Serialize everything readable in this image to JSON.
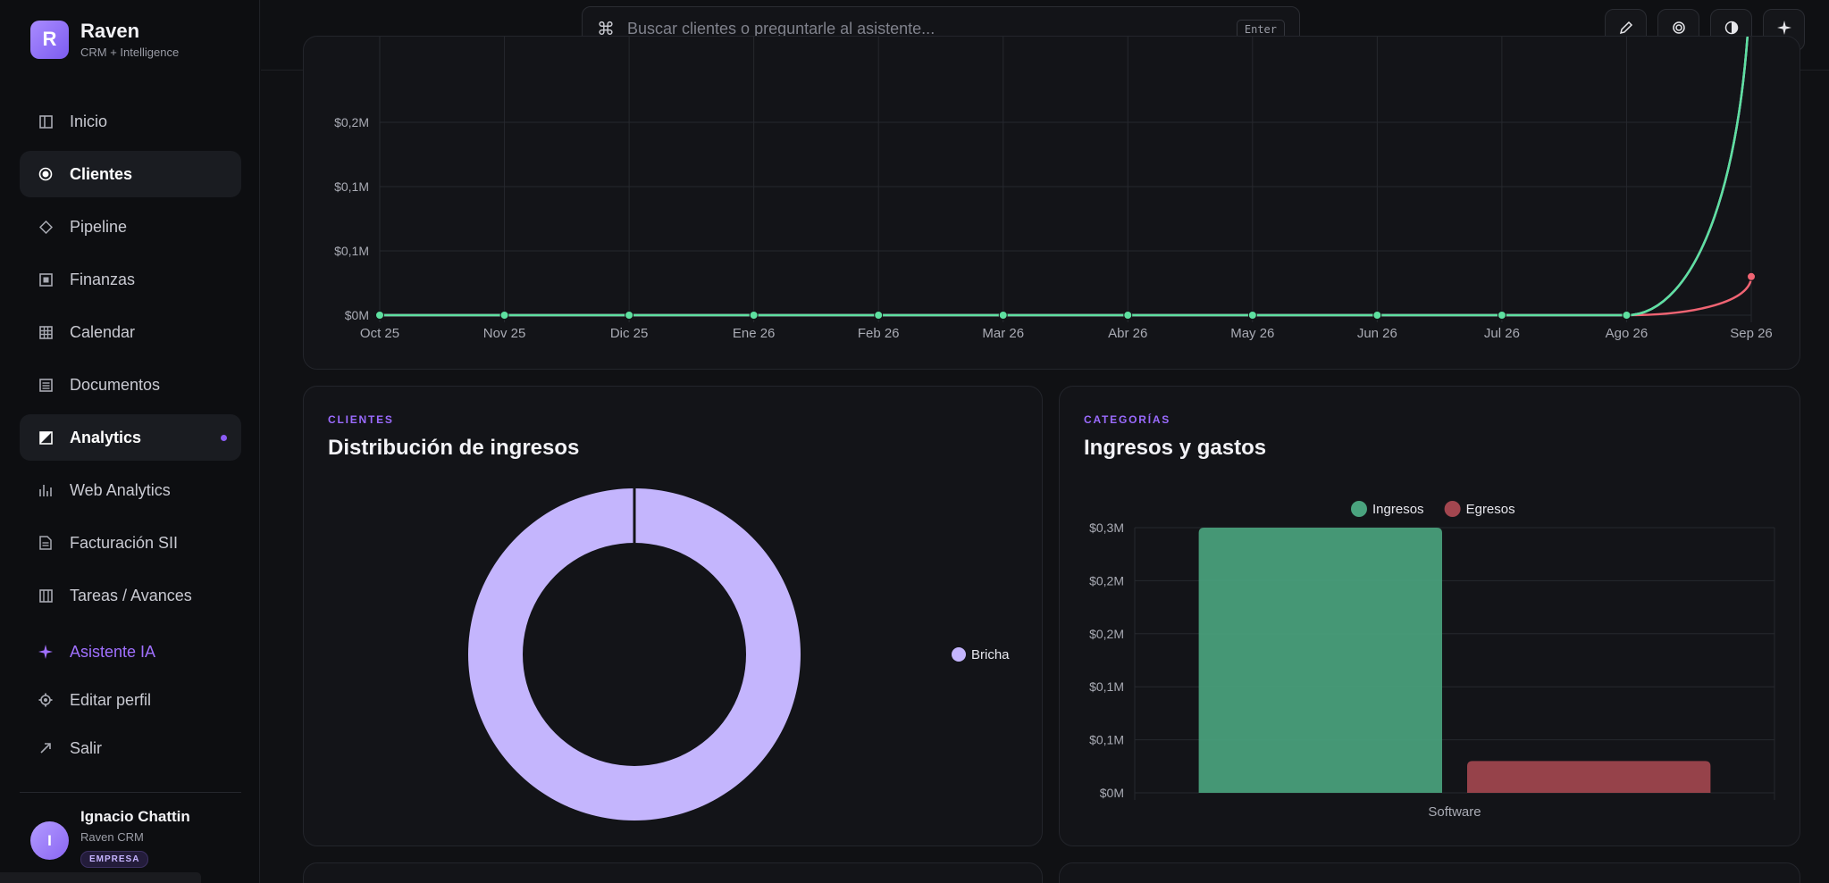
{
  "brand": {
    "logo_letter": "R",
    "name": "Raven",
    "subtitle": "CRM + Intelligence"
  },
  "nav": [
    {
      "label": "Inicio",
      "icon": "columns-icon"
    },
    {
      "label": "Clientes",
      "icon": "target-icon",
      "active": true
    },
    {
      "label": "Pipeline",
      "icon": "diamond-icon"
    },
    {
      "label": "Finanzas",
      "icon": "wallet-icon"
    },
    {
      "label": "Calendar",
      "icon": "calendar-icon"
    },
    {
      "label": "Documentos",
      "icon": "document-icon"
    },
    {
      "label": "Analytics",
      "icon": "chart-icon",
      "active": true,
      "dot": true
    },
    {
      "label": "Web Analytics",
      "icon": "bars-icon"
    },
    {
      "label": "Facturación SII",
      "icon": "invoice-icon"
    },
    {
      "label": "Tareas / Avances",
      "icon": "tasks-icon"
    },
    {
      "label": "Asistente IA",
      "icon": "sparkle-icon",
      "accent": true
    },
    {
      "label": "Editar perfil",
      "icon": "gear-icon"
    },
    {
      "label": "Salir",
      "icon": "exit-arrow-icon"
    }
  ],
  "user": {
    "initial": "I",
    "name": "Ignacio Chattin",
    "org": "Raven CRM",
    "badge": "EMPRESA"
  },
  "search": {
    "placeholder": "Buscar clientes o preguntarle al asistente...",
    "shortcut": "Enter"
  },
  "toolbar": [
    "pencil-icon",
    "target-icon",
    "contrast-icon",
    "sparkle-icon"
  ],
  "colors": {
    "accent": "#8b5cf6",
    "ingresos": "#4aa37e",
    "egresos": "#a2464f",
    "line_green": "#5ee0a0",
    "line_purple": "#c6b3ff",
    "line_red": "#f06473",
    "donut": "#c4b5fd"
  },
  "chart_data": [
    {
      "type": "line",
      "x": [
        "Oct 25",
        "Nov 25",
        "Dic 25",
        "Ene 26",
        "Feb 26",
        "Mar 26",
        "Abr 26",
        "May 26",
        "Jun 26",
        "Jul 26",
        "Ago 26",
        "Sep 26"
      ],
      "y_tick_labels": [
        "$0M",
        "$0,1M",
        "$0,1M",
        "$0,2M"
      ],
      "y_ticks": [
        0,
        0.05,
        0.1,
        0.15
      ],
      "ylim": [
        0,
        0.2
      ],
      "grid": true,
      "series": [
        {
          "color": "#5ee0a0",
          "values": [
            0,
            0,
            0,
            0,
            0,
            0,
            0,
            0,
            0,
            0,
            0,
            0.3
          ]
        },
        {
          "color": "#c6b3ff",
          "values": [
            0,
            0,
            0,
            0,
            0,
            0,
            0,
            0,
            0,
            0,
            0,
            0.3
          ]
        },
        {
          "color": "#f06473",
          "values": [
            0,
            0,
            0,
            0,
            0,
            0,
            0,
            0,
            0,
            0,
            0,
            0.03
          ]
        }
      ]
    },
    {
      "type": "pie",
      "eyebrow": "CLIENTES",
      "title": "Distribución de ingresos",
      "legend_position": "right",
      "slices": [
        {
          "label": "Bricha",
          "value": 100,
          "color": "#c4b5fd"
        }
      ]
    },
    {
      "type": "bar",
      "eyebrow": "CATEGORÍAS",
      "title": "Ingresos y gastos",
      "legend_position": "top",
      "categories": [
        "Software"
      ],
      "series": [
        {
          "name": "Ingresos",
          "color": "#4aa37e",
          "values": [
            0.25
          ]
        },
        {
          "name": "Egresos",
          "color": "#a2464f",
          "values": [
            0.03
          ]
        }
      ],
      "y_tick_labels": [
        "$0M",
        "$0,1M",
        "$0,1M",
        "$0,2M",
        "$0,2M",
        "$0,3M"
      ],
      "y_ticks": [
        0,
        0.05,
        0.1,
        0.15,
        0.2,
        0.25
      ],
      "ylim": [
        0,
        0.25
      ],
      "grid": true
    }
  ]
}
